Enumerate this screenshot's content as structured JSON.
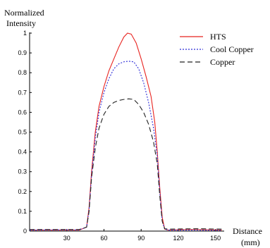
{
  "chart_data": {
    "type": "line",
    "title": "",
    "ylabel_line1": "Normalized",
    "ylabel_line2": "Intensity",
    "xlabel_line1": "Distance",
    "xlabel_line2": "(mm)",
    "xlim": [
      0,
      157
    ],
    "ylim": [
      0,
      1
    ],
    "xticks": [
      30,
      60,
      90,
      120,
      150
    ],
    "yticks": [
      0,
      0.1,
      0.2,
      0.3,
      0.4,
      0.5,
      0.6,
      0.7,
      0.8,
      0.9,
      1
    ],
    "legend_position": "top-right",
    "grid": false,
    "series": [
      {
        "name": "HTS",
        "color": "#e8231f",
        "dash": "solid",
        "points": [
          [
            0,
            0.005
          ],
          [
            20,
            0.005
          ],
          [
            40,
            0.005
          ],
          [
            46,
            0.02
          ],
          [
            48,
            0.12
          ],
          [
            50,
            0.3
          ],
          [
            53,
            0.5
          ],
          [
            56,
            0.63
          ],
          [
            60,
            0.73
          ],
          [
            64,
            0.81
          ],
          [
            68,
            0.87
          ],
          [
            72,
            0.93
          ],
          [
            76,
            0.98
          ],
          [
            79,
            1.0
          ],
          [
            82,
            0.995
          ],
          [
            86,
            0.95
          ],
          [
            90,
            0.87
          ],
          [
            94,
            0.78
          ],
          [
            98,
            0.68
          ],
          [
            101,
            0.55
          ],
          [
            103,
            0.4
          ],
          [
            105,
            0.22
          ],
          [
            107,
            0.07
          ],
          [
            109,
            0.01
          ],
          [
            112,
            0.005
          ],
          [
            130,
            0.008
          ],
          [
            155,
            0.005
          ]
        ]
      },
      {
        "name": "Cool Copper",
        "color": "#2b2bd8",
        "dash": "dotted",
        "points": [
          [
            0,
            0.005
          ],
          [
            20,
            0.006
          ],
          [
            40,
            0.006
          ],
          [
            46,
            0.02
          ],
          [
            48,
            0.11
          ],
          [
            50,
            0.28
          ],
          [
            53,
            0.47
          ],
          [
            56,
            0.6
          ],
          [
            60,
            0.7
          ],
          [
            64,
            0.77
          ],
          [
            68,
            0.82
          ],
          [
            72,
            0.845
          ],
          [
            76,
            0.855
          ],
          [
            80,
            0.858
          ],
          [
            84,
            0.855
          ],
          [
            88,
            0.82
          ],
          [
            92,
            0.75
          ],
          [
            96,
            0.65
          ],
          [
            100,
            0.52
          ],
          [
            103,
            0.38
          ],
          [
            105,
            0.2
          ],
          [
            107,
            0.05
          ],
          [
            109,
            0.01
          ],
          [
            112,
            0.005
          ],
          [
            135,
            0.005
          ],
          [
            155,
            0.004
          ]
        ]
      },
      {
        "name": "Copper",
        "color": "#222222",
        "dash": "dashed",
        "points": [
          [
            0,
            0.008
          ],
          [
            20,
            0.008
          ],
          [
            40,
            0.008
          ],
          [
            46,
            0.02
          ],
          [
            48,
            0.1
          ],
          [
            50,
            0.27
          ],
          [
            53,
            0.42
          ],
          [
            56,
            0.52
          ],
          [
            60,
            0.59
          ],
          [
            64,
            0.63
          ],
          [
            68,
            0.65
          ],
          [
            72,
            0.66
          ],
          [
            76,
            0.665
          ],
          [
            80,
            0.668
          ],
          [
            84,
            0.665
          ],
          [
            88,
            0.64
          ],
          [
            92,
            0.6
          ],
          [
            96,
            0.54
          ],
          [
            100,
            0.45
          ],
          [
            103,
            0.34
          ],
          [
            105,
            0.18
          ],
          [
            107,
            0.05
          ],
          [
            109,
            0.012
          ],
          [
            112,
            0.01
          ],
          [
            135,
            0.012
          ],
          [
            155,
            0.01
          ]
        ]
      }
    ]
  }
}
